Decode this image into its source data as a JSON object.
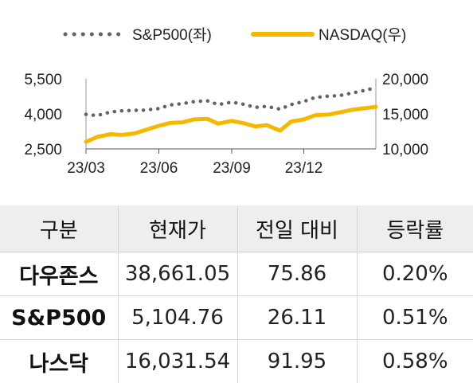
{
  "chart_data": {
    "type": "line",
    "title": "",
    "legend_position": "top",
    "x_tick_labels": [
      "23/03",
      "23/06",
      "23/09",
      "23/12"
    ],
    "x_range": [
      "2023-03-01",
      "2024-03-01"
    ],
    "left_axis": {
      "ticks": [
        "5,500",
        "4,000",
        "2,500"
      ],
      "tick_values": [
        5500,
        4000,
        2500
      ],
      "range": [
        2500,
        5500
      ]
    },
    "right_axis": {
      "ticks": [
        "20,000",
        "15,000",
        "10,000"
      ],
      "tick_values": [
        20000,
        15000,
        10000
      ],
      "range": [
        10000,
        20000
      ]
    },
    "grid": false,
    "colors": {
      "sp500": "#6b6259",
      "nasdaq": "#f5b800"
    },
    "series": [
      {
        "name": "S&P500(좌)",
        "axis": "left",
        "style": "dotted",
        "x": [
          "2023-03-01",
          "2023-03-15",
          "2023-04-01",
          "2023-04-15",
          "2023-05-01",
          "2023-05-15",
          "2023-06-01",
          "2023-06-15",
          "2023-07-01",
          "2023-07-15",
          "2023-08-01",
          "2023-08-15",
          "2023-09-01",
          "2023-09-15",
          "2023-10-01",
          "2023-10-15",
          "2023-11-01",
          "2023-11-15",
          "2023-12-01",
          "2023-12-15",
          "2024-01-01",
          "2024-01-15",
          "2024-02-01",
          "2024-02-15",
          "2024-03-01"
        ],
        "y": [
          3980,
          3930,
          4080,
          4130,
          4150,
          4160,
          4230,
          4380,
          4440,
          4520,
          4560,
          4400,
          4500,
          4420,
          4280,
          4320,
          4200,
          4400,
          4530,
          4700,
          4760,
          4780,
          4900,
          5000,
          5120
        ]
      },
      {
        "name": "NASDAQ(우)",
        "axis": "right",
        "style": "solid",
        "x": [
          "2023-03-01",
          "2023-03-15",
          "2023-04-01",
          "2023-04-15",
          "2023-05-01",
          "2023-05-15",
          "2023-06-01",
          "2023-06-15",
          "2023-07-01",
          "2023-07-15",
          "2023-08-01",
          "2023-08-15",
          "2023-09-01",
          "2023-09-15",
          "2023-10-01",
          "2023-10-15",
          "2023-11-01",
          "2023-11-15",
          "2023-12-01",
          "2023-12-15",
          "2024-01-01",
          "2024-01-15",
          "2024-02-01",
          "2024-02-15",
          "2024-03-01"
        ],
        "y": [
          11000,
          11700,
          12100,
          12000,
          12200,
          12700,
          13300,
          13700,
          13800,
          14200,
          14300,
          13600,
          14000,
          13700,
          13200,
          13400,
          12600,
          13900,
          14200,
          14800,
          14900,
          15200,
          15600,
          15800,
          16000
        ]
      }
    ]
  },
  "table": {
    "headers": [
      "구분",
      "현재가",
      "전일 대비",
      "등락률"
    ],
    "rows": [
      [
        "다우존스",
        "38,661.05",
        "75.86",
        "0.20%"
      ],
      [
        "S&P500",
        "5,104.76",
        "26.11",
        "0.51%"
      ],
      [
        "나스닥",
        "16,031.54",
        "91.95",
        "0.58%"
      ]
    ]
  }
}
